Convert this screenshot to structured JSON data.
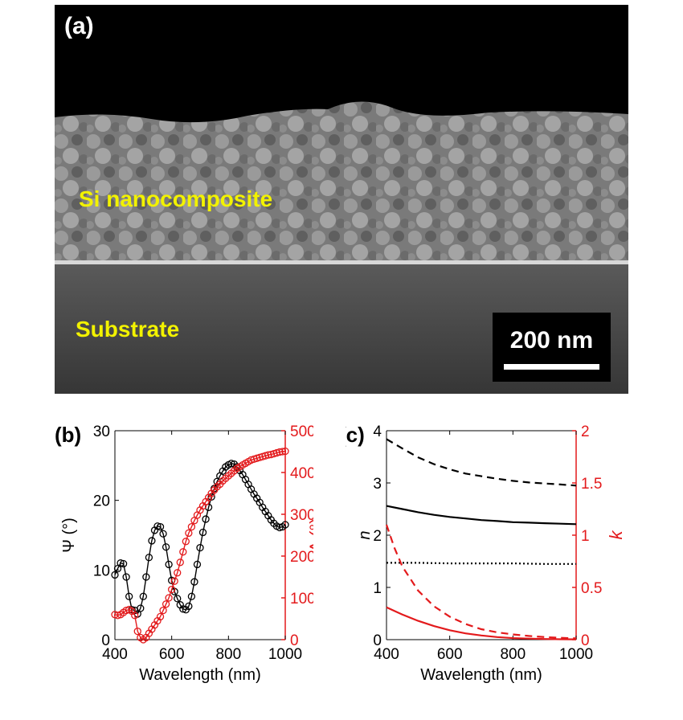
{
  "panel_a": {
    "label": "(a)",
    "film_label": "Si nanocomposite",
    "substrate_label": "Substrate",
    "scale_bar": "200 nm"
  },
  "colors": {
    "left_axis": "#000000",
    "right_axis": "#e31a1c"
  },
  "chart_data": [
    {
      "panel": "(b)",
      "type": "line",
      "xlabel": "Wavelength (nm)",
      "ylabel": "Ψ (°)",
      "y2label": "Δ (°)",
      "xlim": [
        400,
        1000
      ],
      "ylim": [
        0,
        30
      ],
      "y2lim": [
        0,
        500
      ],
      "xticks": [
        400,
        600,
        800,
        1000
      ],
      "yticks": [
        0,
        10,
        20,
        30
      ],
      "y2ticks": [
        0,
        100,
        200,
        300,
        400,
        500
      ],
      "grid": false,
      "legend": "none",
      "series": [
        {
          "axis": "left",
          "color": "#000000",
          "style": "markers+line",
          "x": [
            400,
            410,
            420,
            430,
            440,
            450,
            460,
            470,
            480,
            490,
            500,
            510,
            520,
            530,
            540,
            550,
            560,
            570,
            580,
            590,
            600,
            610,
            620,
            630,
            640,
            650,
            660,
            670,
            680,
            690,
            700,
            710,
            720,
            730,
            740,
            750,
            760,
            770,
            780,
            790,
            800,
            810,
            820,
            830,
            840,
            850,
            860,
            870,
            880,
            890,
            900,
            910,
            920,
            930,
            940,
            950,
            960,
            970,
            980,
            990,
            1000
          ],
          "y": [
            9.3,
            10.2,
            11.0,
            10.9,
            9.0,
            6.2,
            4.3,
            4.2,
            3.7,
            4.5,
            6.2,
            9.0,
            11.8,
            14.2,
            15.7,
            16.3,
            16.2,
            15.2,
            13.3,
            10.8,
            8.5,
            6.9,
            5.9,
            5.0,
            4.4,
            4.3,
            4.8,
            6.2,
            8.3,
            10.8,
            13.2,
            15.4,
            17.3,
            19.0,
            20.5,
            21.7,
            22.7,
            23.5,
            24.2,
            24.8,
            25.1,
            25.3,
            25.2,
            24.8,
            24.3,
            23.7,
            23.0,
            22.3,
            21.6,
            20.9,
            20.3,
            19.7,
            19.0,
            18.4,
            17.8,
            17.2,
            16.7,
            16.3,
            16.1,
            16.2,
            16.5
          ]
        },
        {
          "axis": "right",
          "color": "#e31a1c",
          "style": "markers+line",
          "x": [
            400,
            410,
            420,
            430,
            440,
            450,
            460,
            470,
            480,
            490,
            500,
            510,
            520,
            530,
            540,
            550,
            560,
            570,
            580,
            590,
            600,
            610,
            620,
            630,
            640,
            650,
            660,
            670,
            680,
            690,
            700,
            710,
            720,
            730,
            740,
            750,
            760,
            770,
            780,
            790,
            800,
            810,
            820,
            830,
            840,
            850,
            860,
            870,
            880,
            890,
            900,
            910,
            920,
            930,
            940,
            950,
            960,
            970,
            980,
            990,
            1000
          ],
          "y": [
            60,
            58,
            60,
            65,
            70,
            72,
            68,
            58,
            20,
            5,
            0,
            5,
            15,
            25,
            35,
            45,
            55,
            70,
            85,
            100,
            120,
            140,
            160,
            185,
            210,
            235,
            255,
            270,
            285,
            298,
            310,
            320,
            330,
            340,
            350,
            358,
            366,
            372,
            380,
            386,
            392,
            398,
            404,
            410,
            414,
            418,
            422,
            426,
            430,
            432,
            434,
            436,
            438,
            440,
            442,
            443,
            445,
            447,
            449,
            450,
            451
          ]
        }
      ]
    },
    {
      "panel": "(c)",
      "type": "line",
      "xlabel": "Wavelength (nm)",
      "ylabel": "n",
      "y2label": "k",
      "xlim": [
        400,
        1000
      ],
      "ylim": [
        0,
        4
      ],
      "y2lim": [
        0,
        2
      ],
      "xticks": [
        400,
        600,
        800,
        1000
      ],
      "yticks": [
        0,
        1,
        2,
        3,
        4
      ],
      "y2ticks": [
        0,
        0.5,
        1,
        1.5,
        2
      ],
      "grid": false,
      "legend": "none",
      "series": [
        {
          "axis": "left",
          "color": "#000000",
          "dash": "dashed",
          "x": [
            400,
            450,
            500,
            550,
            600,
            650,
            700,
            750,
            800,
            850,
            900,
            950,
            1000
          ],
          "y": [
            3.84,
            3.66,
            3.49,
            3.36,
            3.26,
            3.18,
            3.13,
            3.08,
            3.04,
            3.01,
            2.99,
            2.97,
            2.95
          ]
        },
        {
          "axis": "left",
          "color": "#000000",
          "dash": "solid",
          "x": [
            400,
            450,
            500,
            550,
            600,
            650,
            700,
            750,
            800,
            850,
            900,
            950,
            1000
          ],
          "y": [
            2.56,
            2.5,
            2.44,
            2.39,
            2.35,
            2.32,
            2.29,
            2.27,
            2.25,
            2.24,
            2.23,
            2.22,
            2.21
          ]
        },
        {
          "axis": "left",
          "color": "#000000",
          "dash": "dotted",
          "x": [
            400,
            500,
            600,
            700,
            800,
            900,
            1000
          ],
          "y": [
            1.47,
            1.47,
            1.46,
            1.46,
            1.46,
            1.45,
            1.45
          ]
        },
        {
          "axis": "right",
          "color": "#e31a1c",
          "dash": "dashed",
          "x": [
            400,
            425,
            450,
            500,
            550,
            600,
            650,
            700,
            750,
            800,
            850,
            900,
            950,
            1000
          ],
          "y": [
            1.1,
            0.88,
            0.7,
            0.47,
            0.32,
            0.22,
            0.15,
            0.1,
            0.07,
            0.05,
            0.035,
            0.025,
            0.018,
            0.012
          ]
        },
        {
          "axis": "right",
          "color": "#e31a1c",
          "dash": "solid",
          "x": [
            400,
            450,
            500,
            550,
            600,
            650,
            700,
            750,
            800,
            850,
            900,
            950,
            1000
          ],
          "y": [
            0.31,
            0.24,
            0.18,
            0.13,
            0.09,
            0.06,
            0.04,
            0.025,
            0.015,
            0.01,
            0.006,
            0.004,
            0.003
          ]
        }
      ]
    }
  ]
}
